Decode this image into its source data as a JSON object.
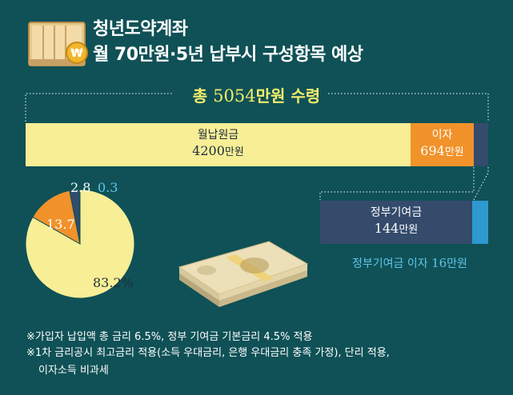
{
  "header": {
    "title_line1": "청년도약계좌",
    "title_line2": "월 70만원·5년 납부시 구성항목 예상"
  },
  "total": {
    "prefix": "총 ",
    "amount": "5054",
    "suffix": "만원 수령"
  },
  "bar": {
    "main_label": "월납원금",
    "main_amount": "4200",
    "interest_label": "이자",
    "interest_amount": "694",
    "unit": "만원"
  },
  "gov": {
    "label": "정부기여금",
    "amount": "144",
    "interest_note_prefix": "정부기여금 이자 ",
    "interest_note_amount": "16",
    "interest_note_unit": "만원"
  },
  "notes": [
    "※가입자 납입액 총 금리 6.5%, 정부 기여금 기본금리 4.5% 적용",
    "※1차 금리공시 최고금리 적용(소득 우대금리, 은행 우대금리 충족 가정), 단리 적용,",
    "이자소득 비과세"
  ],
  "colors": {
    "background": "#0f5156",
    "principal": "#f7ee96",
    "interest": "#f1922a",
    "gov": "#344b6c",
    "gov_interest": "#2e99cf",
    "accent_text": "#f4ec6c"
  },
  "chart_data": [
    {
      "type": "bar",
      "orientation": "horizontal-stacked",
      "unit": "만원",
      "total": 5054,
      "series": [
        {
          "name": "월납원금",
          "values": [
            4200
          ]
        },
        {
          "name": "이자",
          "values": [
            694
          ]
        },
        {
          "name": "정부기여금",
          "values": [
            144
          ]
        },
        {
          "name": "정부기여금 이자",
          "values": [
            16
          ]
        }
      ]
    },
    {
      "type": "pie",
      "unit": "%",
      "slices": [
        {
          "value": 83.2,
          "label": "83.2%",
          "color": "#f7ee96"
        },
        {
          "value": 13.7,
          "label": "13.7",
          "color": "#f1922a"
        },
        {
          "value": 2.8,
          "label": "2.8",
          "color": "#344b6c"
        },
        {
          "value": 0.3,
          "label": "0.3",
          "color": "#2e99cf"
        }
      ]
    }
  ]
}
